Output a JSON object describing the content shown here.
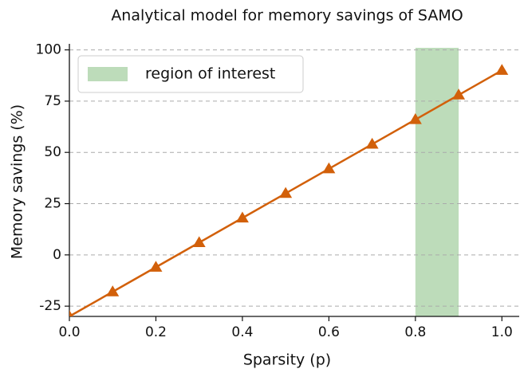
{
  "chart_data": {
    "type": "line",
    "title": "Analytical model for memory savings of SAMO",
    "x_label": "Sparsity (p)",
    "y_label": "Memory savings (%)",
    "x": [
      0.0,
      0.1,
      0.2,
      0.3,
      0.4,
      0.5,
      0.6,
      0.7,
      0.8,
      0.9,
      1.0
    ],
    "series": [
      {
        "name": "Memory savings",
        "color": "#d2600a",
        "marker": "triangle",
        "values": [
          -30,
          -18,
          -6,
          6,
          18,
          30,
          42,
          54,
          66,
          78,
          90
        ]
      }
    ],
    "spans": [
      {
        "name": "region of interest",
        "x": [
          0.8,
          0.9
        ],
        "color": "#bddcba"
      }
    ],
    "xlim": [
      0,
      1.04
    ],
    "ylim": [
      -30,
      101
    ],
    "xticks": [
      {
        "value": 0,
        "label": "0.0"
      },
      0.2,
      0.4,
      0.6,
      0.8,
      {
        "value": 1,
        "label": "1.0"
      }
    ],
    "yticks": [
      -25,
      0,
      25,
      50,
      75,
      100
    ],
    "grid": true,
    "legend": "upper left"
  }
}
